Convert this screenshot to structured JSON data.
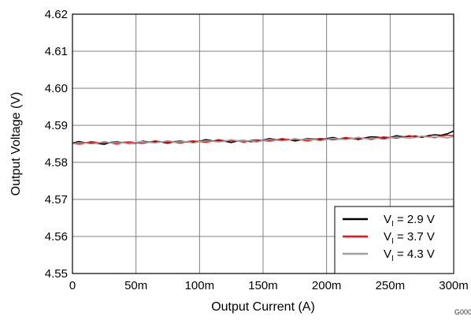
{
  "chart_data": {
    "type": "line",
    "xlabel": "Output Current (A)",
    "ylabel": "Output Voltage (V)",
    "xlim": [
      0,
      300
    ],
    "ylim": [
      4.55,
      4.62
    ],
    "grid": true,
    "legend_position": "bottom-right",
    "x_ticks": [
      0,
      50,
      100,
      150,
      200,
      250,
      300
    ],
    "x_tick_labels": [
      "0",
      "50m",
      "100m",
      "150m",
      "200m",
      "250m",
      "300m"
    ],
    "y_ticks": [
      4.55,
      4.56,
      4.57,
      4.58,
      4.59,
      4.6,
      4.61,
      4.62
    ],
    "y_tick_labels": [
      "4.55",
      "4.56",
      "4.57",
      "4.58",
      "4.59",
      "4.60",
      "4.61",
      "4.62"
    ],
    "x_units": "mA",
    "x": [
      0,
      10,
      20,
      30,
      40,
      50,
      60,
      70,
      80,
      90,
      100,
      110,
      120,
      130,
      140,
      150,
      160,
      170,
      180,
      190,
      200,
      210,
      220,
      230,
      240,
      250,
      260,
      270,
      280,
      290,
      300
    ],
    "series": [
      {
        "name_main": "V",
        "name_sub": "I",
        "name_rest": " = 2.9 V",
        "color": "#000000",
        "values": [
          4.5852,
          4.5853,
          4.5851,
          4.5854,
          4.5853,
          4.5852,
          4.5855,
          4.5855,
          4.5856,
          4.5855,
          4.5857,
          4.5858,
          4.5857,
          4.5858,
          4.5856,
          4.586,
          4.5861,
          4.5862,
          4.5861,
          4.5863,
          4.5864,
          4.5863,
          4.5865,
          4.5866,
          4.5868,
          4.5867,
          4.5869,
          4.5871,
          4.5872,
          4.5873,
          4.5885
        ]
      },
      {
        "name_main": "V",
        "name_sub": "I",
        "name_rest": " = 3.7 V",
        "color": "#e8141e",
        "values": [
          4.5851,
          4.5852,
          4.5853,
          4.5853,
          4.5854,
          4.5853,
          4.5854,
          4.5855,
          4.5855,
          4.5856,
          4.5856,
          4.5857,
          4.5858,
          4.5858,
          4.5859,
          4.5859,
          4.586,
          4.5861,
          4.5861,
          4.5862,
          4.5863,
          4.5863,
          4.5864,
          4.5865,
          4.5866,
          4.5867,
          4.5868,
          4.5869,
          4.587,
          4.5871,
          4.5872
        ]
      },
      {
        "name_main": "V",
        "name_sub": "I",
        "name_rest": " = 4.3 V",
        "color": "#a0a0a0",
        "values": [
          4.585,
          4.5852,
          4.5852,
          4.5853,
          4.5853,
          4.5854,
          4.5854,
          4.5855,
          4.5855,
          4.5856,
          4.5856,
          4.5857,
          4.5857,
          4.5858,
          4.5858,
          4.5859,
          4.586,
          4.586,
          4.5861,
          4.5862,
          4.5862,
          4.5863,
          4.5864,
          4.5864,
          4.5865,
          4.5866,
          4.5867,
          4.5867,
          4.5868,
          4.5869,
          4.587
        ]
      }
    ],
    "figure_code": "G000"
  }
}
